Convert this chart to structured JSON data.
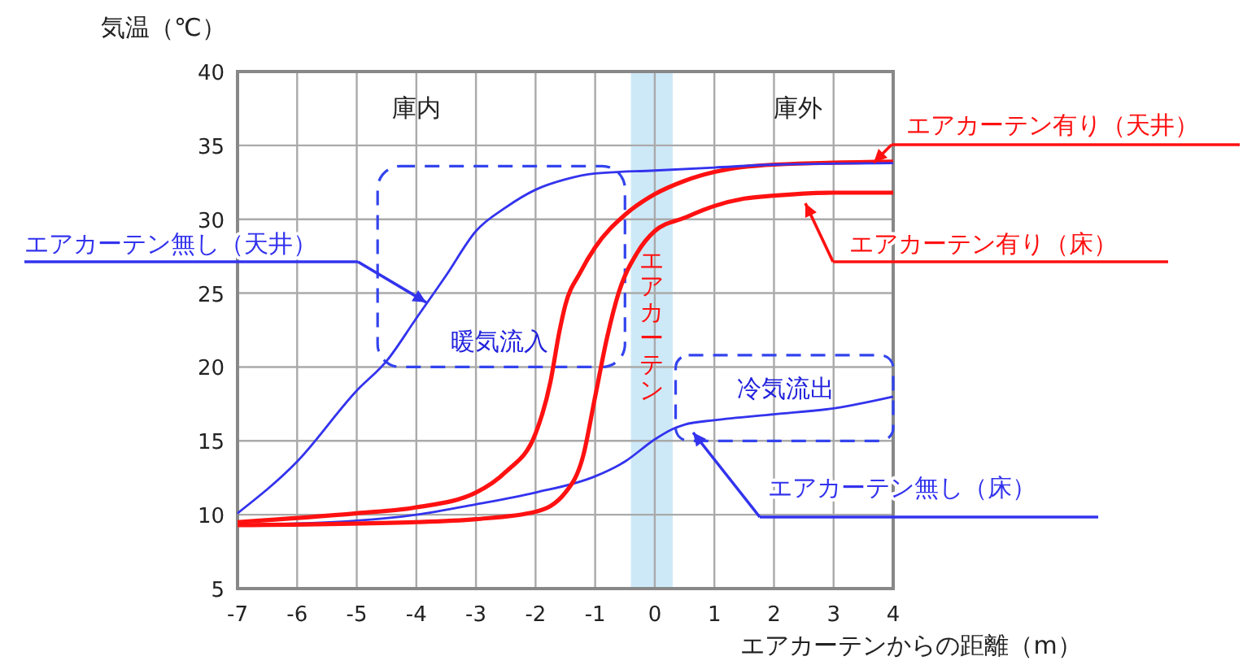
{
  "chart_data": {
    "type": "line",
    "ylabel": "気温（℃）",
    "xlabel": "エアカーテンからの距離（m）",
    "xlim": [
      -7,
      4
    ],
    "xticks": [
      -7,
      -6,
      -5,
      -4,
      -3,
      -2,
      -1,
      0,
      1,
      2,
      3,
      4
    ],
    "ylim": [
      5,
      40
    ],
    "yticks": [
      5,
      10,
      15,
      20,
      25,
      30,
      35,
      40
    ],
    "grid": true,
    "marker": "none",
    "line_style": "solid",
    "annotations": [
      "庫内",
      "庫外",
      "暖気流入",
      "冷気流出"
    ],
    "bands": [
      {
        "axis": "x",
        "from": -0.4,
        "to": 0.3,
        "label": "エアカーテン",
        "color": "#cde9f8"
      }
    ],
    "series": [
      {
        "name": "エアカーテン無し（天井）",
        "color": "#3333ee",
        "x": [
          -7,
          -6,
          -5,
          -4.5,
          -4,
          -3.5,
          -3,
          -2.5,
          -2,
          -1.5,
          -1,
          0,
          1,
          2,
          4
        ],
        "values": [
          10.1,
          13.6,
          18.4,
          20.4,
          23.3,
          26.2,
          29.2,
          30.8,
          32,
          32.7,
          33.1,
          33.3,
          33.5,
          33.7,
          33.8
        ]
      },
      {
        "name": "エアカーテン有り（天井）",
        "color": "#ff1111",
        "x": [
          -7,
          -5,
          -4,
          -3,
          -2.5,
          -2,
          -1.75,
          -1.6,
          -1.5,
          -1.25,
          -1,
          -0.5,
          0,
          0.5,
          1,
          2,
          4
        ],
        "values": [
          9.5,
          10.1,
          10.5,
          11.5,
          12.9,
          15.5,
          19,
          22.4,
          24.2,
          26.4,
          28.1,
          30.3,
          31.7,
          32.6,
          33.2,
          33.7,
          33.9
        ]
      },
      {
        "name": "エアカーテン有り（床）",
        "color": "#ff1111",
        "x": [
          -7,
          -4,
          -3,
          -2,
          -1.5,
          -1.2,
          -1,
          -0.8,
          -0.6,
          -0.3,
          0,
          0.5,
          1,
          1.5,
          2,
          3,
          4
        ],
        "values": [
          9.3,
          9.5,
          9.7,
          10.2,
          11.5,
          14,
          18,
          22,
          25.1,
          27.7,
          29.2,
          30.1,
          30.9,
          31.4,
          31.6,
          31.8,
          31.8
        ]
      },
      {
        "name": "エアカーテン無し（床）",
        "color": "#3333ee",
        "x": [
          -7,
          -5,
          -4,
          -3,
          -2,
          -1,
          -0.5,
          0,
          0.3,
          0.5,
          1,
          2,
          3,
          4
        ],
        "values": [
          9.3,
          9.6,
          10,
          10.7,
          11.5,
          12.6,
          13.6,
          15.1,
          15.8,
          16.1,
          16.4,
          16.8,
          17.2,
          18
        ]
      }
    ]
  }
}
